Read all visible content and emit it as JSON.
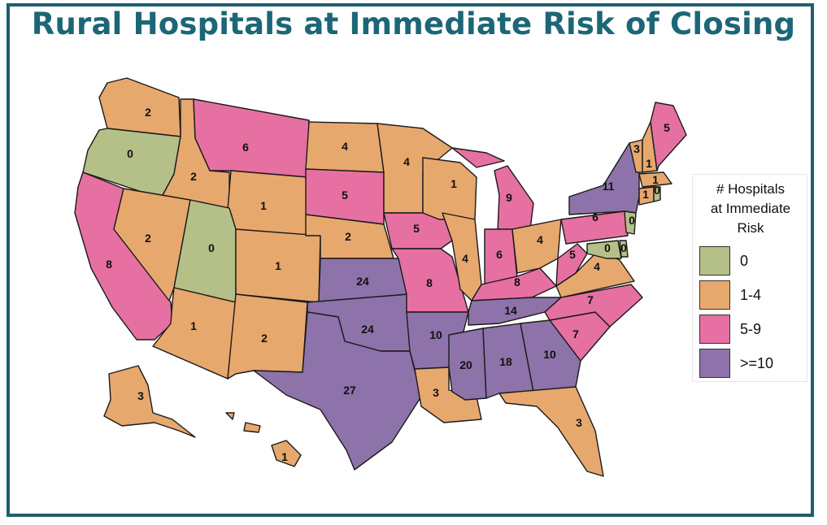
{
  "title": "Rural Hospitals at Immediate Risk of Closing",
  "legend": {
    "title_lines": [
      "# Hospitals",
      "at Immediate",
      "Risk"
    ],
    "items": [
      {
        "label": "0",
        "color": "#b4c087"
      },
      {
        "label": "1-4",
        "color": "#e7a86e"
      },
      {
        "label": "5-9",
        "color": "#e670a1"
      },
      {
        "label": ">=10",
        "color": "#8d73aa"
      }
    ]
  },
  "states": [
    {
      "name": "Washington",
      "value": "2",
      "category": "1-4"
    },
    {
      "name": "Oregon",
      "value": "0",
      "category": "0"
    },
    {
      "name": "California",
      "value": "8",
      "category": "5-9"
    },
    {
      "name": "Idaho",
      "value": "2",
      "category": "1-4"
    },
    {
      "name": "Nevada",
      "value": "2",
      "category": "1-4"
    },
    {
      "name": "Montana",
      "value": "6",
      "category": "5-9"
    },
    {
      "name": "Wyoming",
      "value": "1",
      "category": "1-4"
    },
    {
      "name": "Utah",
      "value": "0",
      "category": "0"
    },
    {
      "name": "Arizona",
      "value": "1",
      "category": "1-4"
    },
    {
      "name": "Colorado",
      "value": "1",
      "category": "1-4"
    },
    {
      "name": "New Mexico",
      "value": "2",
      "category": "1-4"
    },
    {
      "name": "North Dakota",
      "value": "4",
      "category": "1-4"
    },
    {
      "name": "South Dakota",
      "value": "5",
      "category": "5-9"
    },
    {
      "name": "Nebraska",
      "value": "2",
      "category": "1-4"
    },
    {
      "name": "Kansas",
      "value": "24",
      "category": ">=10"
    },
    {
      "name": "Oklahoma",
      "value": "24",
      "category": ">=10"
    },
    {
      "name": "Texas",
      "value": "27",
      "category": ">=10"
    },
    {
      "name": "Minnesota",
      "value": "4",
      "category": "1-4"
    },
    {
      "name": "Iowa",
      "value": "5",
      "category": "5-9"
    },
    {
      "name": "Missouri",
      "value": "8",
      "category": "5-9"
    },
    {
      "name": "Arkansas",
      "value": "10",
      "category": ">=10"
    },
    {
      "name": "Louisiana",
      "value": "3",
      "category": "1-4"
    },
    {
      "name": "Wisconsin",
      "value": "1",
      "category": "1-4"
    },
    {
      "name": "Illinois",
      "value": "4",
      "category": "1-4"
    },
    {
      "name": "Michigan",
      "value": "9",
      "category": "5-9"
    },
    {
      "name": "Indiana",
      "value": "6",
      "category": "5-9"
    },
    {
      "name": "Ohio",
      "value": "4",
      "category": "1-4"
    },
    {
      "name": "Kentucky",
      "value": "8",
      "category": "5-9"
    },
    {
      "name": "Tennessee",
      "value": "14",
      "category": ">=10"
    },
    {
      "name": "Mississippi",
      "value": "20",
      "category": ">=10"
    },
    {
      "name": "Alabama",
      "value": "18",
      "category": ">=10"
    },
    {
      "name": "Georgia",
      "value": "10",
      "category": ">=10"
    },
    {
      "name": "Florida",
      "value": "3",
      "category": "1-4"
    },
    {
      "name": "South Carolina",
      "value": "7",
      "category": "5-9"
    },
    {
      "name": "North Carolina",
      "value": "7",
      "category": "5-9"
    },
    {
      "name": "Virginia",
      "value": "4",
      "category": "1-4"
    },
    {
      "name": "West Virginia",
      "value": "5",
      "category": "5-9"
    },
    {
      "name": "Pennsylvania",
      "value": "6",
      "category": "5-9"
    },
    {
      "name": "New York",
      "value": "11",
      "category": ">=10"
    },
    {
      "name": "Vermont",
      "value": "3",
      "category": "1-4"
    },
    {
      "name": "New Hampshire",
      "value": "1",
      "category": "1-4"
    },
    {
      "name": "Maine",
      "value": "5",
      "category": "5-9"
    },
    {
      "name": "Massachusetts",
      "value": "1",
      "category": "1-4"
    },
    {
      "name": "Connecticut",
      "value": "1",
      "category": "1-4"
    },
    {
      "name": "Rhode Island",
      "value": "0",
      "category": "0"
    },
    {
      "name": "New Jersey",
      "value": "0",
      "category": "0"
    },
    {
      "name": "Delaware",
      "value": "0",
      "category": "0"
    },
    {
      "name": "Maryland",
      "value": "0",
      "category": "0"
    },
    {
      "name": "Alaska",
      "value": "3",
      "category": "1-4"
    },
    {
      "name": "Hawaii",
      "value": "1",
      "category": "1-4"
    }
  ]
}
